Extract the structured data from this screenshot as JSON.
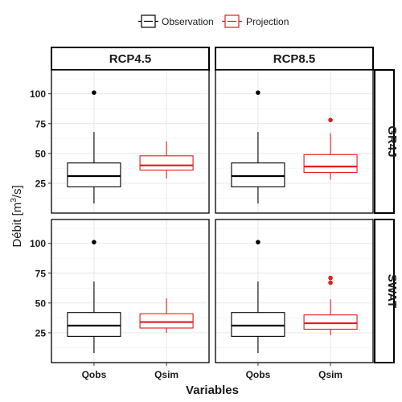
{
  "chart_data": {
    "type": "box",
    "title": "",
    "xlabel": "Variables",
    "ylabel_prefix": "Débit [m",
    "ylabel_sup": "3",
    "ylabel_suffix": "/s]",
    "categories": [
      "Qobs",
      "Qsim"
    ],
    "ylim": [
      0,
      120
    ],
    "yticks": [
      25,
      50,
      75,
      100
    ],
    "column_facets": [
      "RCP4.5",
      "RCP8.5"
    ],
    "row_facets": [
      "GR4J",
      "SWAT"
    ],
    "legend": {
      "position": "top",
      "entries": [
        {
          "label": "Observation",
          "color": "#000000"
        },
        {
          "label": "Projection",
          "color": "#e31a1c"
        }
      ]
    },
    "panels": [
      {
        "col": "RCP4.5",
        "row": "GR4J",
        "boxes": [
          {
            "category": "Qobs",
            "series": "Observation",
            "min": 8,
            "q1": 22,
            "median": 31,
            "q3": 42,
            "max": 68,
            "outliers": [
              101
            ]
          },
          {
            "category": "Qsim",
            "series": "Projection",
            "min": 29,
            "q1": 36,
            "median": 40,
            "q3": 48,
            "max": 60,
            "outliers": []
          }
        ]
      },
      {
        "col": "RCP8.5",
        "row": "GR4J",
        "boxes": [
          {
            "category": "Qobs",
            "series": "Observation",
            "min": 8,
            "q1": 22,
            "median": 31,
            "q3": 42,
            "max": 68,
            "outliers": [
              101
            ]
          },
          {
            "category": "Qsim",
            "series": "Projection",
            "min": 28,
            "q1": 34,
            "median": 39,
            "q3": 49,
            "max": 67,
            "outliers": [
              78
            ]
          }
        ]
      },
      {
        "col": "RCP4.5",
        "row": "SWAT",
        "boxes": [
          {
            "category": "Qobs",
            "series": "Observation",
            "min": 8,
            "q1": 22,
            "median": 31,
            "q3": 42,
            "max": 68,
            "outliers": [
              101
            ]
          },
          {
            "category": "Qsim",
            "series": "Projection",
            "min": 25,
            "q1": 29,
            "median": 34,
            "q3": 41,
            "max": 54,
            "outliers": []
          }
        ]
      },
      {
        "col": "RCP8.5",
        "row": "SWAT",
        "boxes": [
          {
            "category": "Qobs",
            "series": "Observation",
            "min": 8,
            "q1": 22,
            "median": 31,
            "q3": 42,
            "max": 68,
            "outliers": [
              101
            ]
          },
          {
            "category": "Qsim",
            "series": "Projection",
            "min": 23,
            "q1": 28,
            "median": 33,
            "q3": 40,
            "max": 53,
            "outliers": [
              67,
              71
            ]
          }
        ]
      }
    ]
  }
}
